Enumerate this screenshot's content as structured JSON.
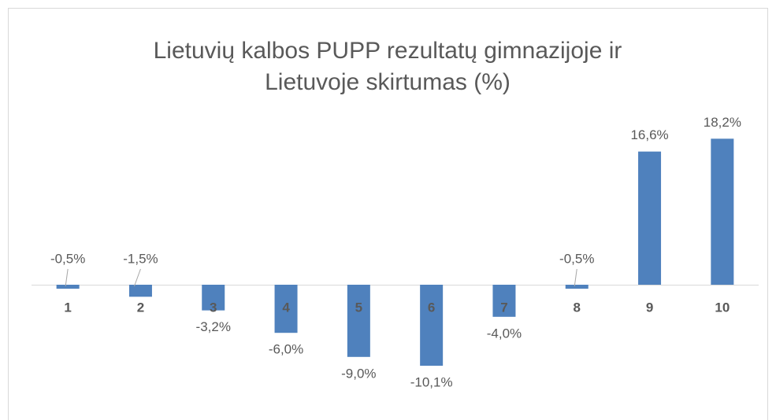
{
  "chart_data": {
    "type": "bar",
    "title": [
      "Lietuvių kalbos PUPP rezultatų gimnazijoje ir",
      "Lietuvoje skirtumas (%)"
    ],
    "categories": [
      "1",
      "2",
      "3",
      "4",
      "5",
      "6",
      "7",
      "8",
      "9",
      "10"
    ],
    "values": [
      -0.5,
      -1.5,
      -3.2,
      -6.0,
      -9.0,
      -10.1,
      -4.0,
      -0.5,
      16.6,
      18.2
    ],
    "value_labels": [
      "-0,5%",
      "-1,5%",
      "-3,2%",
      "-6,0%",
      "-9,0%",
      "-10,1%",
      "-4,0%",
      "-0,5%",
      "16,6%",
      "18,2%"
    ],
    "color": "#4f81bd"
  }
}
